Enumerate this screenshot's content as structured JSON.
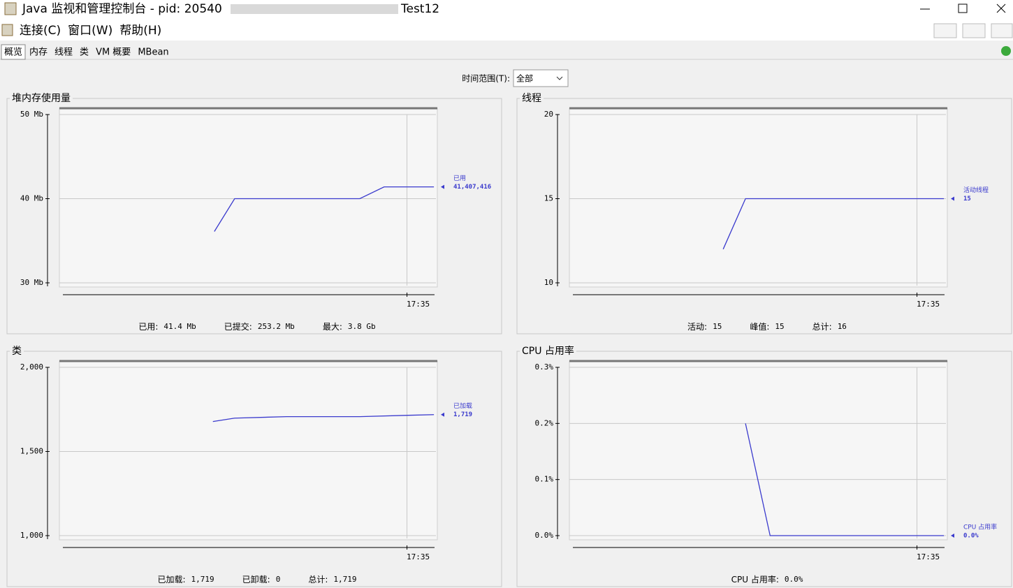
{
  "window": {
    "title": "Java 监视和管理控制台 - pid: 20540",
    "title_tail": "Test12"
  },
  "menu": [
    "连接(C)",
    "窗口(W)",
    "帮助(H)"
  ],
  "tabs": [
    "概览",
    "内存",
    "线程",
    "类",
    "VM 概要",
    "MBean"
  ],
  "time_range": {
    "label": "时间范围(T):",
    "value": "全部"
  },
  "chart_data": [
    {
      "type": "line",
      "title": "堆内存使用量",
      "x": [
        34.335,
        34.405,
        34.837,
        34.921,
        35.093
      ],
      "series": [
        {
          "name": "已用",
          "color": "#3a3acd",
          "values": [
            36.1,
            40,
            40,
            41.4,
            41.4
          ]
        }
      ],
      "latest_label": "41,407,416",
      "xlim": [
        33.8,
        35.1
      ],
      "xticks": [
        {
          "value": 35,
          "label": "17:35"
        }
      ],
      "ylim": [
        30,
        50
      ],
      "yticks": [
        {
          "value": 30,
          "label": "30 Mb"
        },
        {
          "value": 40,
          "label": "40 Mb"
        },
        {
          "value": 50,
          "label": "50 Mb"
        }
      ],
      "grid": true,
      "stats": [
        {
          "label": "已用:",
          "value": "41.4 Mb"
        },
        {
          "label": "已提交:",
          "value": "253.2 Mb"
        },
        {
          "label": "最大:",
          "value": "3.8 Gb"
        }
      ]
    },
    {
      "type": "line",
      "title": "线程",
      "x": [
        34.331,
        34.408,
        35.093
      ],
      "series": [
        {
          "name": "活动线程",
          "color": "#3a3acd",
          "values": [
            12,
            15,
            15
          ]
        }
      ],
      "latest_label": "15",
      "xlim": [
        33.8,
        35.1
      ],
      "xticks": [
        {
          "value": 35,
          "label": "17:35"
        }
      ],
      "ylim": [
        10,
        20
      ],
      "yticks": [
        10,
        15,
        20
      ],
      "grid": true,
      "stats": [
        {
          "label": "活动:",
          "value": "15"
        },
        {
          "label": "峰值:",
          "value": "15"
        },
        {
          "label": "总计:",
          "value": "16"
        }
      ]
    },
    {
      "type": "line",
      "title": "类",
      "x": [
        34.33,
        34.405,
        34.584,
        34.837,
        35.004,
        35.093
      ],
      "series": [
        {
          "name": "已加载",
          "color": "#3a3acd",
          "values": [
            1678,
            1698,
            1707,
            1707,
            1715,
            1719
          ]
        }
      ],
      "latest_label": "1,719",
      "xlim": [
        33.8,
        35.1
      ],
      "xticks": [
        {
          "value": 35,
          "label": "17:35"
        }
      ],
      "ylim": [
        1000,
        2000
      ],
      "yticks": [
        {
          "value": 1000,
          "label": "1,000"
        },
        {
          "value": 1500,
          "label": "1,500"
        },
        {
          "value": 2000,
          "label": "2,000"
        }
      ],
      "grid": true,
      "stats": [
        {
          "label": "已加载:",
          "value": "1,719"
        },
        {
          "label": "已卸载:",
          "value": "0"
        },
        {
          "label": "总计:",
          "value": "1,719"
        }
      ]
    },
    {
      "type": "line",
      "title": "CPU 占用率",
      "x": [
        34.408,
        34.493,
        35.093
      ],
      "series": [
        {
          "name": "CPU 占用率",
          "color": "#3a3acd",
          "values": [
            0.2,
            0,
            0
          ]
        }
      ],
      "latest_label": "0.0%",
      "xlim": [
        33.8,
        35.1
      ],
      "xticks": [
        {
          "value": 35,
          "label": "17:35"
        }
      ],
      "ylim": [
        0,
        0.3
      ],
      "yticks": [
        {
          "value": 0,
          "label": "0.0%"
        },
        {
          "value": 0.1,
          "label": "0.1%"
        },
        {
          "value": 0.2,
          "label": "0.2%"
        },
        {
          "value": 0.3,
          "label": "0.3%"
        }
      ],
      "grid": true,
      "stats": [
        {
          "label": "CPU 占用率:",
          "value": "0.0%"
        }
      ]
    }
  ]
}
